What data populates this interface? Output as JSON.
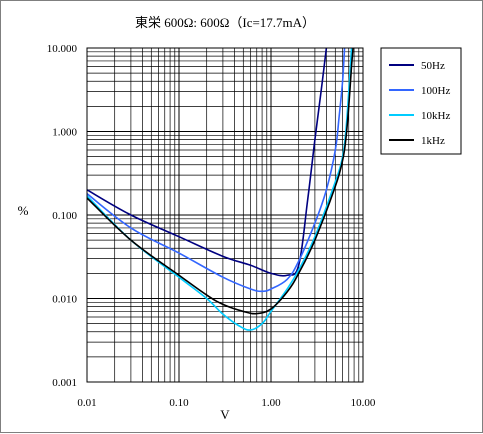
{
  "chart_data": {
    "type": "line",
    "title": "東栄 600Ω: 600Ω（Ic=17.7mA）",
    "xlabel": "V",
    "ylabel": "%",
    "x_scale": "log",
    "y_scale": "log",
    "xlim": [
      0.01,
      10
    ],
    "ylim": [
      0.001,
      10
    ],
    "x_ticks": [
      "0.01",
      "0.10",
      "1.00",
      "10.00"
    ],
    "y_ticks": [
      "10.000",
      "1.000",
      "0.100",
      "0.010",
      "0.001"
    ],
    "grid": true,
    "legend_position": "right",
    "series": [
      {
        "name": "50Hz",
        "color": "#000080",
        "points": [
          [
            0.01,
            0.2
          ],
          [
            0.03,
            0.1
          ],
          [
            0.1,
            0.055
          ],
          [
            0.3,
            0.032
          ],
          [
            0.6,
            0.025
          ],
          [
            1.0,
            0.02
          ],
          [
            1.5,
            0.019
          ],
          [
            2.0,
            0.025
          ],
          [
            2.5,
            0.15
          ],
          [
            3.0,
            0.8
          ],
          [
            3.5,
            3.0
          ],
          [
            4.0,
            10.0
          ]
        ]
      },
      {
        "name": "100Hz",
        "color": "#3366ff",
        "points": [
          [
            0.01,
            0.18
          ],
          [
            0.03,
            0.07
          ],
          [
            0.1,
            0.035
          ],
          [
            0.3,
            0.018
          ],
          [
            0.6,
            0.013
          ],
          [
            0.8,
            0.0122
          ],
          [
            1.0,
            0.013
          ],
          [
            1.5,
            0.017
          ],
          [
            2.0,
            0.028
          ],
          [
            3.0,
            0.08
          ],
          [
            4.0,
            0.2
          ],
          [
            5.0,
            0.6
          ],
          [
            5.5,
            1.5
          ],
          [
            6.0,
            4.0
          ],
          [
            6.3,
            10.0
          ]
        ]
      },
      {
        "name": "10kHz",
        "color": "#00ccff",
        "points": [
          [
            0.01,
            0.17
          ],
          [
            0.03,
            0.05
          ],
          [
            0.1,
            0.018
          ],
          [
            0.2,
            0.01
          ],
          [
            0.3,
            0.0065
          ],
          [
            0.45,
            0.0047
          ],
          [
            0.6,
            0.0042
          ],
          [
            0.8,
            0.005
          ],
          [
            1.0,
            0.007
          ],
          [
            1.5,
            0.013
          ],
          [
            2.0,
            0.022
          ],
          [
            3.0,
            0.055
          ],
          [
            5.0,
            0.25
          ],
          [
            6.0,
            0.5
          ],
          [
            6.5,
            1.0
          ],
          [
            7.0,
            3.0
          ],
          [
            7.5,
            10.0
          ]
        ]
      },
      {
        "name": "1kHz",
        "color": "#000000",
        "points": [
          [
            0.01,
            0.16
          ],
          [
            0.03,
            0.05
          ],
          [
            0.1,
            0.019
          ],
          [
            0.2,
            0.011
          ],
          [
            0.3,
            0.0085
          ],
          [
            0.5,
            0.007
          ],
          [
            0.7,
            0.0066
          ],
          [
            1.0,
            0.0075
          ],
          [
            1.5,
            0.012
          ],
          [
            2.0,
            0.02
          ],
          [
            3.0,
            0.05
          ],
          [
            5.0,
            0.22
          ],
          [
            6.0,
            0.45
          ],
          [
            6.5,
            0.8
          ],
          [
            7.0,
            2.0
          ],
          [
            7.5,
            6.0
          ],
          [
            7.8,
            10.0
          ]
        ]
      }
    ]
  }
}
